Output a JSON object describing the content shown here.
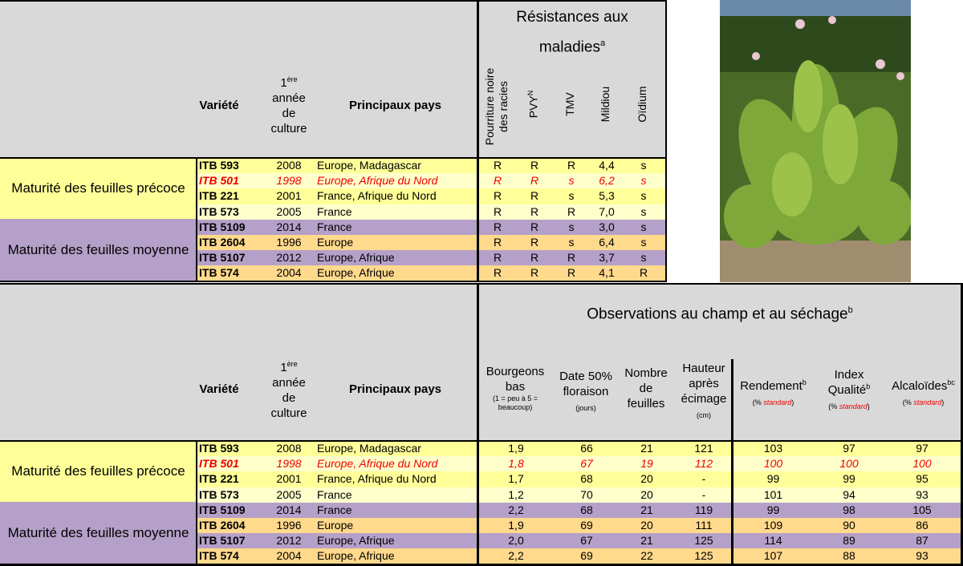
{
  "colors": {
    "header_bg": "#d9d9d9",
    "early_light": "#ffff99",
    "early_pale": "#ffffcc",
    "mid_purple": "#b4a0c8",
    "mid_orange": "#ffd98c",
    "highlight_red": "#ee0000"
  },
  "common": {
    "variete": "Variété",
    "annee_sup": "ère",
    "annee_num": "1",
    "annee_l1": "année",
    "annee_l2": "de",
    "annee_l3": "culture",
    "pays": "Principaux pays",
    "group_early": "Maturité des feuilles précoce",
    "group_mid": "Maturité des feuilles moyenne"
  },
  "table1": {
    "title_l1": "Résistances aux",
    "title_l2": "maladies",
    "title_sup": "a",
    "cols": [
      "Pourriture noire des racies",
      "PVYN",
      "TMV",
      "Mildiou",
      "Oïdium"
    ],
    "col_pvy": "PVY",
    "col_pvy_sup": "N",
    "rows": [
      {
        "variety": "ITB 593",
        "year": "2008",
        "countries": "Europe, Madagascar",
        "r1": "R",
        "r2": "R",
        "r3": "R",
        "r4": "4,4",
        "r5": "s"
      },
      {
        "variety": "ITB 501",
        "year": "1998",
        "countries": "Europe,  Afrique du Nord",
        "r1": "R",
        "r2": "R",
        "r3": "s",
        "r4": "6,2",
        "r5": "s"
      },
      {
        "variety": "ITB 221",
        "year": "2001",
        "countries": "France,  Afrique du Nord",
        "r1": "R",
        "r2": "R",
        "r3": "s",
        "r4": "5,3",
        "r5": "s"
      },
      {
        "variety": "ITB 573",
        "year": "2005",
        "countries": "France",
        "r1": "R",
        "r2": "R",
        "r3": "R",
        "r4": "7,0",
        "r5": "s"
      },
      {
        "variety": "ITB 5109",
        "year": "2014",
        "countries": "France",
        "r1": "R",
        "r2": "R",
        "r3": "s",
        "r4": "3,0",
        "r5": "s"
      },
      {
        "variety": "ITB 2604",
        "year": "1996",
        "countries": "Europe",
        "r1": "R",
        "r2": "R",
        "r3": "s",
        "r4": "6,4",
        "r5": "s"
      },
      {
        "variety": "ITB 5107",
        "year": "2012",
        "countries": "Europe, Afrique",
        "r1": "R",
        "r2": "R",
        "r3": "R",
        "r4": "3,7",
        "r5": "s"
      },
      {
        "variety": "ITB 574",
        "year": "2004",
        "countries": "Europe, Afrique",
        "r1": "R",
        "r2": "R",
        "r3": "R",
        "r4": "4,1",
        "r5": "R"
      }
    ]
  },
  "table2": {
    "title": "Observations au champ et au séchage",
    "title_sup": "b",
    "h_bourgeons_l1": "Bourgeons",
    "h_bourgeons_l2": "bas",
    "h_bourgeons_n1": "(1 = peu à 5 =",
    "h_bourgeons_n2": "beaucoup)",
    "h_date_l1": "Date 50%",
    "h_date_l2": "floraison",
    "h_date_n": "(jours)",
    "h_nombre_l1": "Nombre",
    "h_nombre_l2": "de",
    "h_nombre_l3": "feuilles",
    "h_hauteur_l1": "Hauteur",
    "h_hauteur_l2": "après",
    "h_hauteur_l3": "écimage",
    "h_hauteur_n": "(cm)",
    "h_rendement": "Rendement",
    "h_rendement_sup": "b",
    "h_index_l1": "Index",
    "h_index_l2": "Qualité",
    "h_index_sup": "b",
    "h_alcal": "Alcaloïdes",
    "h_alcal_sup": "bc",
    "pct": "(% ",
    "standard": "standard",
    "close": ")",
    "rows": [
      {
        "variety": "ITB 593",
        "year": "2008",
        "countries": "Europe, Madagascar",
        "bourg": "1,9",
        "date": "66",
        "nombre": "21",
        "haut": "121",
        "rend": "103",
        "index": "97",
        "alc": "97"
      },
      {
        "variety": "ITB 501",
        "year": "1998",
        "countries": "Europe,  Afrique du Nord",
        "bourg": "1,8",
        "date": "67",
        "nombre": "19",
        "haut": "112",
        "rend": "100",
        "index": "100",
        "alc": "100"
      },
      {
        "variety": "ITB 221",
        "year": "2001",
        "countries": "France,  Afrique du Nord",
        "bourg": "1,7",
        "date": "68",
        "nombre": "20",
        "haut": "-",
        "rend": "99",
        "index": "99",
        "alc": "95"
      },
      {
        "variety": "ITB 573",
        "year": "2005",
        "countries": "France",
        "bourg": "1,2",
        "date": "70",
        "nombre": "20",
        "haut": "-",
        "rend": "101",
        "index": "94",
        "alc": "93"
      },
      {
        "variety": "ITB 5109",
        "year": "2014",
        "countries": "France",
        "bourg": "2,2",
        "date": "68",
        "nombre": "21",
        "haut": "119",
        "rend": "99",
        "index": "98",
        "alc": "105"
      },
      {
        "variety": "ITB 2604",
        "year": "1996",
        "countries": "Europe",
        "bourg": "1,9",
        "date": "69",
        "nombre": "20",
        "haut": "111",
        "rend": "109",
        "index": "90",
        "alc": "86"
      },
      {
        "variety": "ITB 5107",
        "year": "2012",
        "countries": "Europe, Afrique",
        "bourg": "2,0",
        "date": "67",
        "nombre": "21",
        "haut": "125",
        "rend": "114",
        "index": "89",
        "alc": "87"
      },
      {
        "variety": "ITB 574",
        "year": "2004",
        "countries": "Europe, Afrique",
        "bourg": "2,2",
        "date": "69",
        "nombre": "22",
        "haut": "125",
        "rend": "107",
        "index": "88",
        "alc": "93"
      }
    ]
  }
}
